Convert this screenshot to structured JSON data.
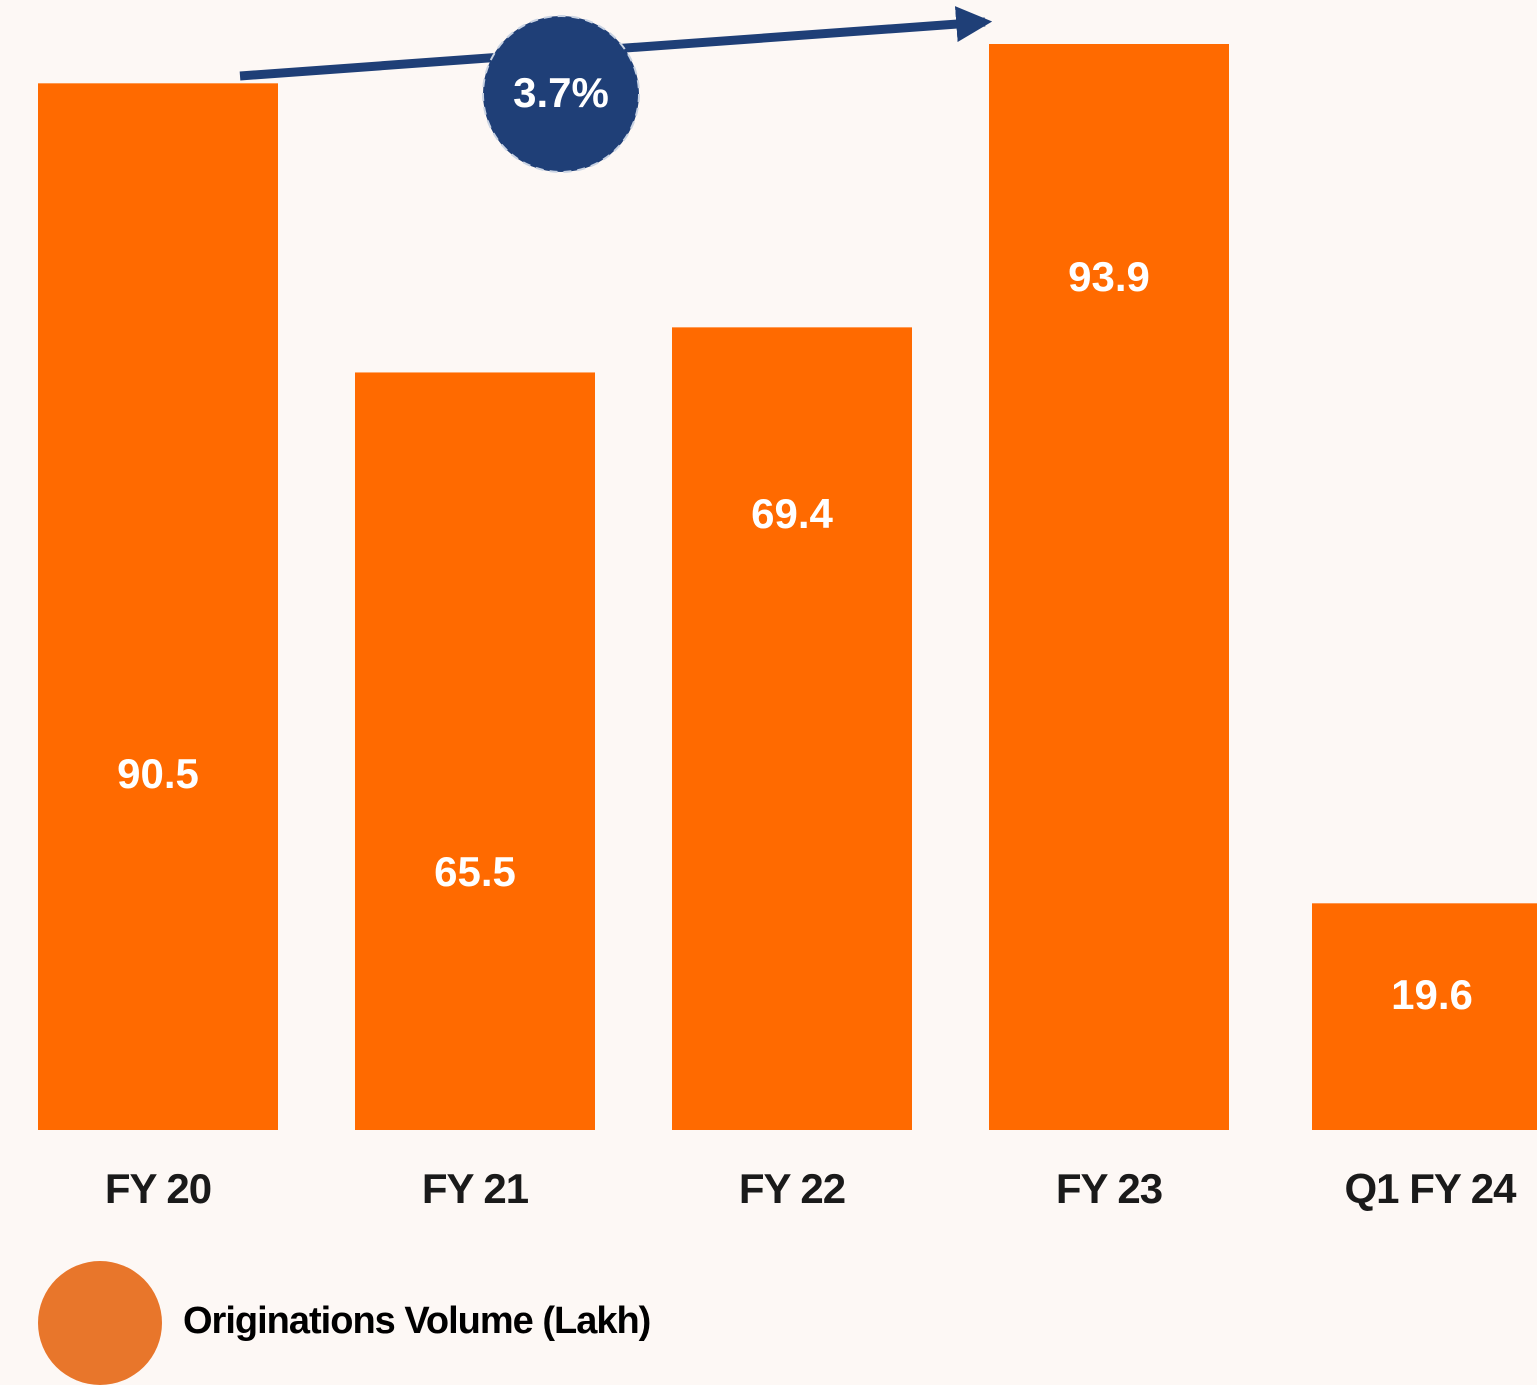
{
  "chart_data": {
    "type": "bar",
    "categories": [
      "FY 20",
      "FY 21",
      "FY 22",
      "FY 23",
      "Q1 FY 24"
    ],
    "series": [
      {
        "name": "Originations Volume (Lakh)",
        "color": "#ff6a00",
        "values": [
          90.5,
          65.5,
          69.4,
          93.9,
          19.6
        ]
      }
    ],
    "legend_color": "#e8762b",
    "annotation": "3.7%"
  }
}
